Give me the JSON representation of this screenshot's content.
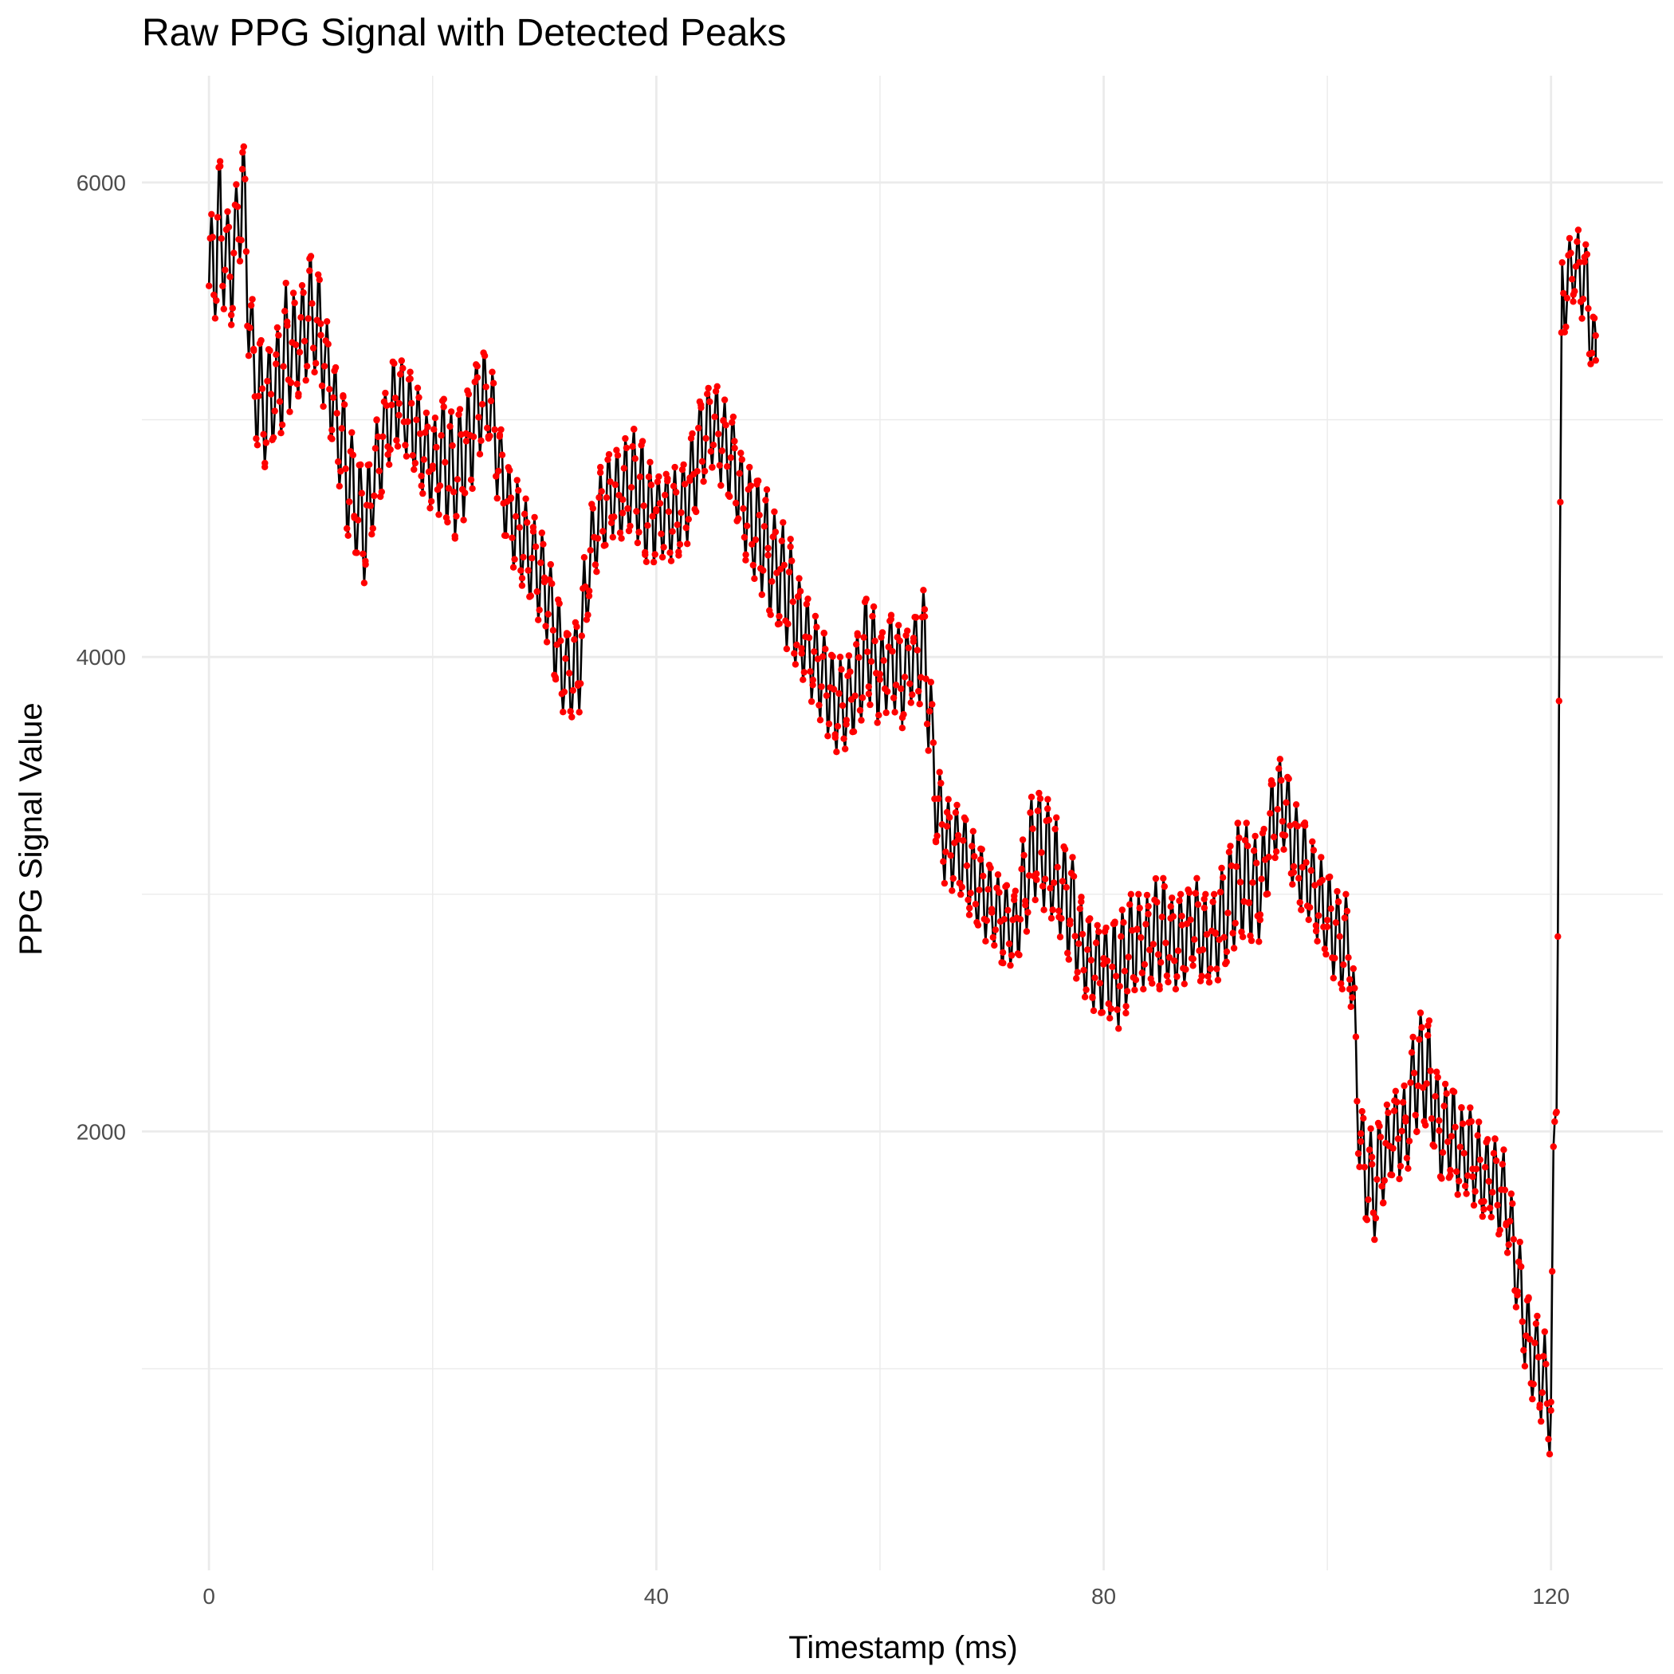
{
  "chart_data": {
    "type": "line",
    "title": "Raw PPG Signal with Detected Peaks",
    "xlabel": "Timestamp (ms)",
    "ylabel": "PPG Signal Value",
    "xlim": [
      -6,
      130
    ],
    "ylim": [
      150,
      6450
    ],
    "x_ticks": [
      0,
      40,
      80,
      120
    ],
    "y_ticks": [
      2000,
      4000,
      6000
    ],
    "grid": true,
    "legend": "none",
    "colors": {
      "line": "#000000",
      "points": "#ff0000",
      "grid": "#ebebeb"
    },
    "series": [
      {
        "points_marked": true,
        "envelope": [
          [
            0.0,
            5300,
            5800
          ],
          [
            1.0,
            5500,
            6100
          ],
          [
            2.0,
            5400,
            5800
          ],
          [
            3.0,
            5700,
            6300
          ],
          [
            4.0,
            4900,
            5400
          ],
          [
            5.0,
            4800,
            5300
          ],
          [
            6.0,
            4900,
            5400
          ],
          [
            7.0,
            5000,
            5600
          ],
          [
            8.0,
            5100,
            5500
          ],
          [
            9.0,
            5200,
            5700
          ],
          [
            10.0,
            5100,
            5600
          ],
          [
            11.0,
            4900,
            5300
          ],
          [
            12.0,
            4600,
            5100
          ],
          [
            13.0,
            4400,
            4900
          ],
          [
            14.0,
            4300,
            4800
          ],
          [
            15.0,
            4600,
            5000
          ],
          [
            16.0,
            4800,
            5200
          ],
          [
            17.0,
            4900,
            5300
          ],
          [
            18.0,
            4800,
            5200
          ],
          [
            19.0,
            4700,
            5100
          ],
          [
            20.0,
            4600,
            5000
          ],
          [
            21.0,
            4600,
            5100
          ],
          [
            22.0,
            4500,
            5000
          ],
          [
            23.0,
            4600,
            5100
          ],
          [
            24.0,
            4800,
            5300
          ],
          [
            25.0,
            4900,
            5300
          ],
          [
            26.0,
            4600,
            5000
          ],
          [
            27.0,
            4400,
            4800
          ],
          [
            28.0,
            4300,
            4700
          ],
          [
            29.0,
            4200,
            4600
          ],
          [
            30.0,
            4100,
            4500
          ],
          [
            31.0,
            3900,
            4300
          ],
          [
            32.0,
            3700,
            4100
          ],
          [
            33.0,
            3700,
            4200
          ],
          [
            34.0,
            4200,
            4600
          ],
          [
            35.0,
            4400,
            4800
          ],
          [
            36.0,
            4500,
            4900
          ],
          [
            37.0,
            4500,
            4900
          ],
          [
            38.0,
            4500,
            5000
          ],
          [
            39.0,
            4400,
            4900
          ],
          [
            40.0,
            4400,
            4800
          ],
          [
            41.0,
            4400,
            4800
          ],
          [
            42.0,
            4400,
            4800
          ],
          [
            43.0,
            4500,
            4900
          ],
          [
            44.0,
            4700,
            5100
          ],
          [
            45.0,
            4800,
            5200
          ],
          [
            46.0,
            4700,
            5100
          ],
          [
            47.0,
            4600,
            5000
          ],
          [
            48.0,
            4400,
            4800
          ],
          [
            49.0,
            4300,
            4800
          ],
          [
            50.0,
            4200,
            4700
          ],
          [
            51.0,
            4100,
            4600
          ],
          [
            52.0,
            4000,
            4500
          ],
          [
            53.0,
            3900,
            4300
          ],
          [
            54.0,
            3800,
            4200
          ],
          [
            55.0,
            3700,
            4100
          ],
          [
            56.0,
            3600,
            4000
          ],
          [
            57.0,
            3600,
            4000
          ],
          [
            58.0,
            3700,
            4100
          ],
          [
            59.0,
            3800,
            4300
          ],
          [
            60.0,
            3700,
            4100
          ],
          [
            61.0,
            3800,
            4200
          ],
          [
            62.0,
            3700,
            4100
          ],
          [
            63.0,
            3800,
            4200
          ],
          [
            64.0,
            3800,
            4300
          ],
          [
            65.0,
            3200,
            3600
          ],
          [
            66.0,
            3000,
            3400
          ],
          [
            67.0,
            3000,
            3400
          ],
          [
            68.0,
            2900,
            3300
          ],
          [
            69.0,
            2800,
            3200
          ],
          [
            70.0,
            2800,
            3100
          ],
          [
            71.0,
            2700,
            3100
          ],
          [
            72.0,
            2700,
            3000
          ],
          [
            73.0,
            2800,
            3300
          ],
          [
            74.0,
            3000,
            3500
          ],
          [
            75.0,
            2900,
            3400
          ],
          [
            76.0,
            2800,
            3300
          ],
          [
            77.0,
            2700,
            3200
          ],
          [
            78.0,
            2600,
            3000
          ],
          [
            79.0,
            2500,
            2900
          ],
          [
            80.0,
            2500,
            2900
          ],
          [
            81.0,
            2400,
            2900
          ],
          [
            82.0,
            2500,
            3000
          ],
          [
            83.0,
            2600,
            3000
          ],
          [
            84.0,
            2600,
            3000
          ],
          [
            85.0,
            2600,
            3100
          ],
          [
            86.0,
            2600,
            3000
          ],
          [
            87.0,
            2600,
            3000
          ],
          [
            88.0,
            2700,
            3100
          ],
          [
            89.0,
            2600,
            3000
          ],
          [
            90.0,
            2600,
            3000
          ],
          [
            91.0,
            2700,
            3200
          ],
          [
            92.0,
            2800,
            3300
          ],
          [
            93.0,
            2800,
            3300
          ],
          [
            94.0,
            2800,
            3200
          ],
          [
            95.0,
            3100,
            3500
          ],
          [
            96.0,
            3200,
            3600
          ],
          [
            97.0,
            3000,
            3400
          ],
          [
            98.0,
            2900,
            3300
          ],
          [
            99.0,
            2800,
            3200
          ],
          [
            100.0,
            2700,
            3100
          ],
          [
            101.0,
            2600,
            3000
          ],
          [
            102.0,
            2600,
            3000
          ],
          [
            103.0,
            1700,
            2100
          ],
          [
            104.0,
            1500,
            2000
          ],
          [
            105.0,
            1700,
            2100
          ],
          [
            106.0,
            1800,
            2200
          ],
          [
            107.0,
            1800,
            2200
          ],
          [
            108.0,
            2000,
            2500
          ],
          [
            109.0,
            2000,
            2500
          ],
          [
            110.0,
            1800,
            2200
          ],
          [
            111.0,
            1800,
            2200
          ],
          [
            112.0,
            1700,
            2100
          ],
          [
            113.0,
            1700,
            2100
          ],
          [
            114.0,
            1600,
            2000
          ],
          [
            115.0,
            1600,
            2000
          ],
          [
            116.0,
            1500,
            1900
          ],
          [
            117.0,
            1200,
            1600
          ],
          [
            118.0,
            900,
            1300
          ],
          [
            119.0,
            800,
            1200
          ],
          [
            120.0,
            600,
            1100
          ],
          [
            120.5,
            2000,
            3000
          ],
          [
            121.0,
            5300,
            5700
          ],
          [
            122.0,
            5500,
            5800
          ],
          [
            123.0,
            5400,
            5800
          ],
          [
            124.0,
            5100,
            5400
          ]
        ]
      }
    ]
  }
}
